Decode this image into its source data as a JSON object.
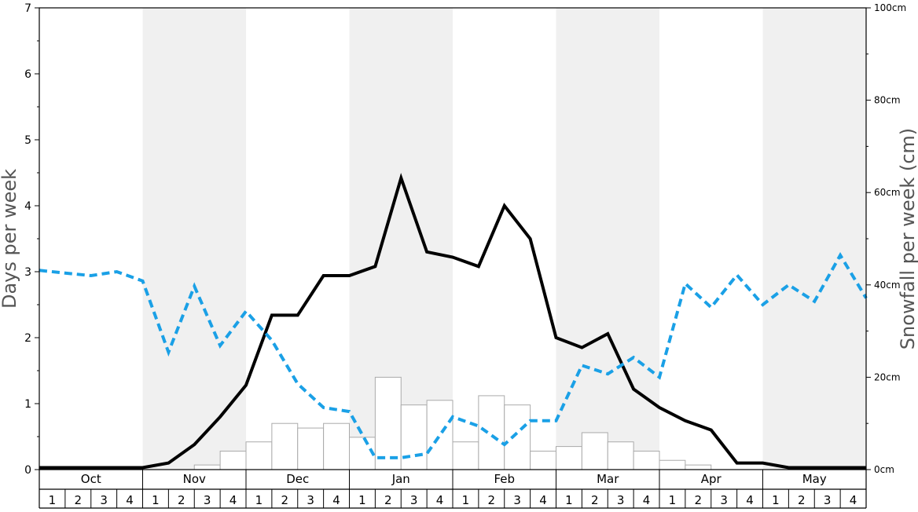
{
  "chart_data": {
    "type": "line",
    "months": [
      "Oct",
      "Nov",
      "Dec",
      "Jan",
      "Feb",
      "Mar",
      "Apr",
      "May"
    ],
    "weeks": [
      "1",
      "2",
      "3",
      "4"
    ],
    "y_left": {
      "label": "Days per week",
      "range": [
        0,
        7
      ],
      "ticks": [
        "0",
        "1",
        "2",
        "3",
        "4",
        "5",
        "6",
        "7"
      ]
    },
    "y_right": {
      "label": "Snowfall per week (cm)",
      "range": [
        0,
        100
      ],
      "ticks": [
        "0cm",
        "20cm",
        "40cm",
        "60cm",
        "80cm",
        "100cm"
      ]
    },
    "series": [
      {
        "kind": "bar",
        "axis": "right",
        "values": [
          0,
          0,
          0,
          0,
          0,
          0,
          1,
          4,
          6,
          10,
          9,
          10,
          7,
          20,
          14,
          15,
          6,
          16,
          14,
          4,
          5,
          8,
          6,
          4,
          2,
          1,
          0,
          0,
          0,
          0,
          0,
          0
        ]
      },
      {
        "kind": "line",
        "axis": "left",
        "style": "solid",
        "color": "#000000",
        "values": [
          0.03,
          0.03,
          0.03,
          0.03,
          0.03,
          0.1,
          0.38,
          0.8,
          1.28,
          2.34,
          2.34,
          2.94,
          2.94,
          3.08,
          4.42,
          3.3,
          3.22,
          3.08,
          4.0,
          3.5,
          2.0,
          1.85,
          2.06,
          1.22,
          0.94,
          0.74,
          0.6,
          0.1,
          0.1,
          0.03,
          0.03,
          0.03,
          0.03
        ]
      },
      {
        "kind": "line",
        "axis": "left",
        "style": "dashed",
        "color": "#1aa0e6",
        "values": [
          3.02,
          2.98,
          2.94,
          3.0,
          2.86,
          1.78,
          2.78,
          1.88,
          2.4,
          1.96,
          1.3,
          0.94,
          0.88,
          0.18,
          0.18,
          0.24,
          0.8,
          0.66,
          0.38,
          0.74,
          0.74,
          1.58,
          1.45,
          1.7,
          1.4,
          2.82,
          2.46,
          2.95,
          2.5,
          2.8,
          2.55,
          3.25,
          2.6
        ]
      }
    ],
    "background_bands": "alternating months shaded #f0f0f0 (Nov, Jan, Mar, May)",
    "grid": false,
    "legend": "none"
  }
}
